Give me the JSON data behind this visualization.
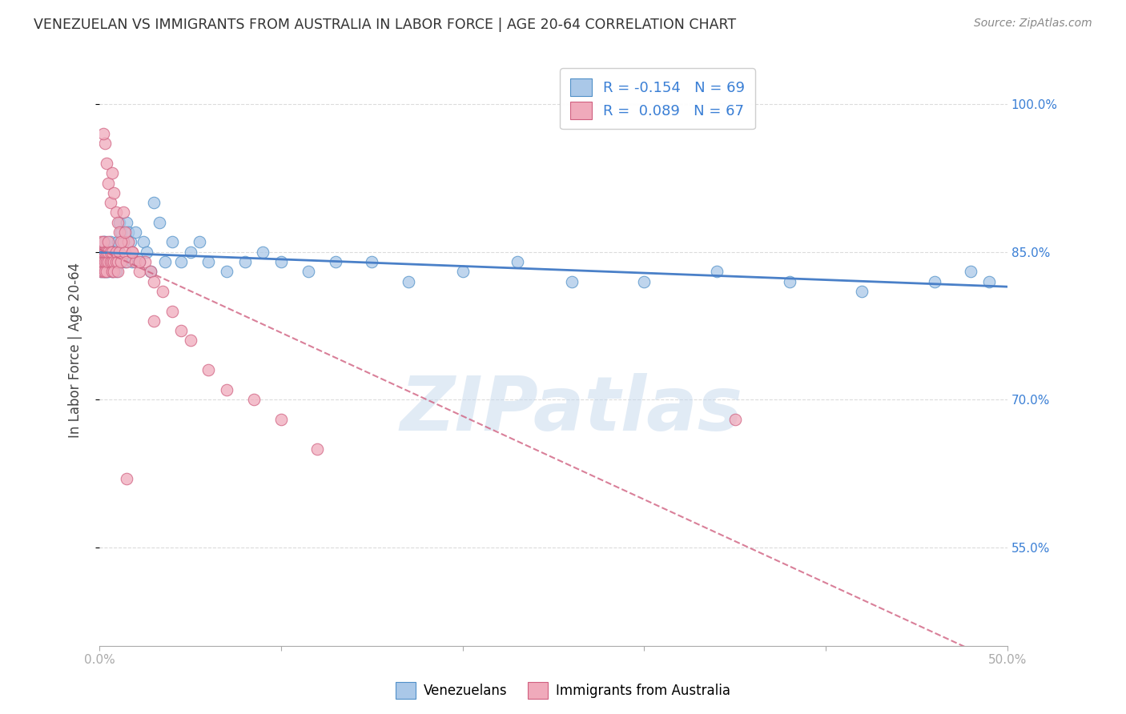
{
  "title": "VENEZUELAN VS IMMIGRANTS FROM AUSTRALIA IN LABOR FORCE | AGE 20-64 CORRELATION CHART",
  "source": "Source: ZipAtlas.com",
  "ylabel": "In Labor Force | Age 20-64",
  "xmin": 0.0,
  "xmax": 0.5,
  "ymin": 0.45,
  "ymax": 1.05,
  "yticks": [
    0.55,
    0.7,
    0.85,
    1.0
  ],
  "ytick_labels": [
    "55.0%",
    "70.0%",
    "85.0%",
    "100.0%"
  ],
  "xticks": [
    0.0,
    0.1,
    0.2,
    0.3,
    0.4,
    0.5
  ],
  "xtick_labels": [
    "0.0%",
    "",
    "",
    "",
    "",
    "50.0%"
  ],
  "background_color": "#ffffff",
  "grid_color": "#cccccc",
  "blue_fill_color": "#aac8e8",
  "blue_edge_color": "#5090c8",
  "pink_fill_color": "#f0aabb",
  "pink_edge_color": "#d06080",
  "blue_line_color": "#4a80c8",
  "pink_line_color": "#d06080",
  "legend_R_blue": "-0.154",
  "legend_N_blue": "69",
  "legend_R_pink": "0.089",
  "legend_N_pink": "67",
  "watermark": "ZIPatlas",
  "venezuelan_x": [
    0.001,
    0.001,
    0.001,
    0.002,
    0.002,
    0.002,
    0.002,
    0.003,
    0.003,
    0.003,
    0.003,
    0.004,
    0.004,
    0.004,
    0.005,
    0.005,
    0.005,
    0.006,
    0.006,
    0.006,
    0.007,
    0.007,
    0.007,
    0.008,
    0.008,
    0.009,
    0.009,
    0.01,
    0.01,
    0.011,
    0.011,
    0.012,
    0.013,
    0.014,
    0.015,
    0.016,
    0.017,
    0.018,
    0.02,
    0.022,
    0.024,
    0.026,
    0.028,
    0.03,
    0.033,
    0.036,
    0.04,
    0.045,
    0.05,
    0.055,
    0.06,
    0.07,
    0.08,
    0.09,
    0.1,
    0.115,
    0.13,
    0.15,
    0.17,
    0.2,
    0.23,
    0.26,
    0.3,
    0.34,
    0.38,
    0.42,
    0.46,
    0.48,
    0.49
  ],
  "venezuelan_y": [
    0.83,
    0.84,
    0.85,
    0.83,
    0.84,
    0.85,
    0.86,
    0.83,
    0.84,
    0.85,
    0.86,
    0.83,
    0.84,
    0.85,
    0.83,
    0.84,
    0.85,
    0.84,
    0.85,
    0.86,
    0.83,
    0.84,
    0.85,
    0.84,
    0.85,
    0.83,
    0.84,
    0.85,
    0.86,
    0.84,
    0.88,
    0.87,
    0.86,
    0.84,
    0.88,
    0.87,
    0.86,
    0.84,
    0.87,
    0.84,
    0.86,
    0.85,
    0.83,
    0.9,
    0.88,
    0.84,
    0.86,
    0.84,
    0.85,
    0.86,
    0.84,
    0.83,
    0.84,
    0.85,
    0.84,
    0.83,
    0.84,
    0.84,
    0.82,
    0.83,
    0.84,
    0.82,
    0.82,
    0.83,
    0.82,
    0.81,
    0.82,
    0.83,
    0.82
  ],
  "australia_x": [
    0.001,
    0.001,
    0.001,
    0.001,
    0.002,
    0.002,
    0.002,
    0.002,
    0.003,
    0.003,
    0.003,
    0.004,
    0.004,
    0.004,
    0.005,
    0.005,
    0.005,
    0.006,
    0.006,
    0.007,
    0.007,
    0.007,
    0.008,
    0.008,
    0.009,
    0.009,
    0.01,
    0.01,
    0.011,
    0.012,
    0.013,
    0.014,
    0.015,
    0.016,
    0.018,
    0.02,
    0.022,
    0.025,
    0.028,
    0.03,
    0.035,
    0.04,
    0.045,
    0.05,
    0.06,
    0.07,
    0.085,
    0.1,
    0.12,
    0.015,
    0.003,
    0.004,
    0.005,
    0.006,
    0.007,
    0.002,
    0.008,
    0.009,
    0.01,
    0.011,
    0.012,
    0.013,
    0.014,
    0.018,
    0.022,
    0.03,
    0.35
  ],
  "australia_y": [
    0.83,
    0.84,
    0.85,
    0.86,
    0.84,
    0.85,
    0.86,
    0.83,
    0.83,
    0.84,
    0.85,
    0.84,
    0.85,
    0.83,
    0.84,
    0.85,
    0.86,
    0.84,
    0.85,
    0.83,
    0.84,
    0.85,
    0.84,
    0.83,
    0.84,
    0.85,
    0.84,
    0.83,
    0.85,
    0.84,
    0.86,
    0.85,
    0.84,
    0.86,
    0.85,
    0.84,
    0.83,
    0.84,
    0.83,
    0.82,
    0.81,
    0.79,
    0.77,
    0.76,
    0.73,
    0.71,
    0.7,
    0.68,
    0.65,
    0.62,
    0.96,
    0.94,
    0.92,
    0.9,
    0.93,
    0.97,
    0.91,
    0.89,
    0.88,
    0.87,
    0.86,
    0.89,
    0.87,
    0.85,
    0.84,
    0.78,
    0.68
  ]
}
